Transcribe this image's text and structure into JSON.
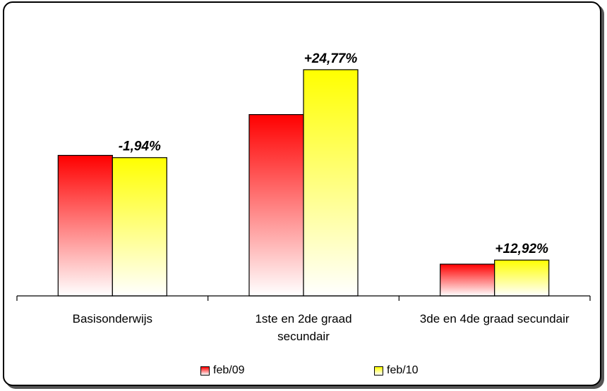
{
  "chart_data": {
    "type": "bar",
    "categories": [
      "Basisonderwijs",
      "1ste en 2de graad secundair",
      "3de en 4de graad secundair"
    ],
    "category_label_lines": [
      [
        "Basisonderwijs"
      ],
      [
        "1ste en 2de graad",
        "secundair"
      ],
      [
        "3de en 4de graad secundair"
      ]
    ],
    "series": [
      {
        "name": "feb/09",
        "values": [
          62,
          80,
          14
        ],
        "color": "#ff0000"
      },
      {
        "name": "feb/10",
        "values": [
          61,
          99.8,
          15.8
        ],
        "color": "#ffff00"
      }
    ],
    "data_labels": [
      "-1,94%",
      "+24,77%",
      "+12,92%"
    ],
    "ylim": [
      0,
      115
    ],
    "grid": false,
    "legend_position": "bottom"
  }
}
